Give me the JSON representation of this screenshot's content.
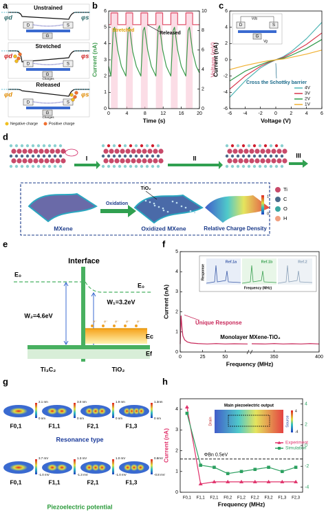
{
  "panel_labels": [
    "a",
    "b",
    "c",
    "d",
    "e",
    "f",
    "g",
    "h"
  ],
  "a": {
    "states": [
      "Unstrained",
      "Stretched",
      "Released"
    ],
    "phi_d": "φd",
    "phi_s": "φs",
    "device": [
      "D",
      "S",
      "G"
    ],
    "charges": "Charges",
    "legend": [
      "Negative charge",
      "Positive charge"
    ]
  },
  "chart_data": [
    {
      "type": "line",
      "xlabel": "Time (s)",
      "ylabel": "Current (nA)",
      "y2label": "Voltage (mV)",
      "xlim": [
        0,
        20
      ],
      "xticks": [
        0,
        4,
        8,
        12,
        16,
        20
      ],
      "ylim": [
        0,
        6
      ],
      "yticks": [
        0,
        1,
        2,
        3,
        4,
        5,
        6
      ],
      "y2lim": [
        0,
        10
      ],
      "y2ticks": [
        0,
        2,
        4,
        6,
        8,
        10
      ],
      "shaded": true,
      "annotations": [
        "Stretched",
        "Released"
      ],
      "series": [
        {
          "color": "#3a9a4a",
          "x": [
            0,
            0.5,
            1.0,
            1.3,
            2.0,
            2.8,
            3.8,
            4.3,
            4.6,
            5.3,
            6.1,
            7.1,
            7.6,
            7.9,
            8.6,
            9.4,
            10.4,
            10.9,
            11.2,
            11.9,
            12.7,
            13.7,
            14.2,
            14.5,
            15.2,
            16.0,
            17,
            17.5,
            17.8,
            18.5,
            19.3,
            20
          ],
          "values": [
            2.6,
            2.0,
            4.8,
            5.0,
            3.6,
            2.6,
            2.0,
            4.9,
            5.0,
            3.5,
            2.6,
            2.0,
            4.8,
            5.0,
            3.6,
            2.6,
            2.0,
            4.9,
            5.1,
            3.6,
            2.6,
            2.0,
            4.8,
            5.0,
            3.6,
            2.6,
            2.0,
            4.8,
            5.0,
            3.5,
            2.6,
            2.2
          ]
        },
        {
          "color": "#e0506a",
          "axis": "y2",
          "x": [
            0,
            0.5,
            0.5,
            2,
            2,
            3.8,
            3.8,
            5.3,
            5.3,
            7.1,
            7.1,
            8.6,
            8.6,
            10.4,
            10.4,
            11.9,
            11.9,
            13.7,
            13.7,
            15.2,
            15.2,
            17,
            17,
            18.5,
            18.5,
            20
          ],
          "values": [
            8.6,
            8.6,
            9.8,
            9.8,
            8.6,
            8.6,
            9.8,
            9.8,
            8.6,
            8.6,
            9.8,
            9.8,
            8.6,
            8.6,
            9.8,
            9.8,
            8.6,
            8.6,
            9.8,
            9.8,
            8.6,
            8.6,
            9.8,
            9.8,
            8.6,
            8.6
          ]
        }
      ]
    },
    {
      "type": "line",
      "xlabel": "Voltage (V)",
      "ylabel": "Current (nA)",
      "x": [
        -6,
        -4,
        -2,
        -1,
        0,
        1,
        2,
        4,
        6
      ],
      "xlim": [
        -6,
        6
      ],
      "xticks": [
        -6,
        -4,
        -2,
        0,
        2,
        4,
        6
      ],
      "ylim": [
        -6,
        6
      ],
      "yticks": [
        -6,
        -4,
        -2,
        0,
        2,
        4,
        6
      ],
      "legend": true,
      "legend_loc": "lower right",
      "annotation": "Cross the Schottky barrier",
      "inset_labels": [
        "D",
        "S",
        "G",
        "Vds",
        "Vg"
      ],
      "series": [
        {
          "name": "4V",
          "color": "#4fb5b5",
          "values": [
            -4.6,
            -2.6,
            -1.0,
            -0.45,
            0,
            0.4,
            1.0,
            2.6,
            4.6
          ]
        },
        {
          "name": "3V",
          "color": "#d8344a",
          "values": [
            -3.6,
            -2.0,
            -0.8,
            -0.35,
            0,
            0.3,
            0.8,
            1.9,
            3.3
          ]
        },
        {
          "name": "2V",
          "color": "#2f9a4a",
          "values": [
            -2.6,
            -1.4,
            -0.6,
            -0.25,
            0,
            0.2,
            0.55,
            1.4,
            2.5
          ]
        },
        {
          "name": "1V",
          "color": "#f0b030",
          "values": [
            -1.2,
            -0.7,
            -0.3,
            -0.12,
            0,
            0.1,
            0.3,
            0.7,
            1.2
          ]
        }
      ]
    },
    {
      "type": "line",
      "xlabel": "Frequency (MHz)",
      "ylabel": "Current (nA)",
      "x": [
        0,
        1,
        2,
        3,
        5,
        8,
        12,
        20,
        30,
        40,
        50,
        60,
        75,
        325,
        340,
        350,
        360,
        370,
        380,
        390,
        400
      ],
      "xlim": [
        0,
        400
      ],
      "xbreak": [
        75,
        325
      ],
      "xticks": [
        0,
        25,
        50,
        350,
        400
      ],
      "ylim": [
        0,
        5
      ],
      "yticks": [
        0,
        1,
        2,
        3,
        4,
        5
      ],
      "annotations": [
        "Unique Response",
        "Monolayer MXene-TiO₂"
      ],
      "inset_labels": [
        "Response",
        "Frequency (MHz)",
        "Ref.1a",
        "Ref.1b",
        "Ref.2"
      ],
      "series": [
        {
          "color": "#c8285a",
          "values": [
            0.4,
            1.8,
            1.2,
            0.8,
            0.6,
            0.5,
            0.45,
            0.42,
            0.4,
            0.42,
            0.4,
            0.41,
            0.4,
            0.41,
            0.4,
            0.42,
            0.4,
            0.41,
            0.4,
            0.42,
            0.4
          ]
        }
      ]
    },
    {
      "type": "line",
      "xlabel": "Frequency (MHz)",
      "ylabel": "Current (nA)",
      "categories": [
        "F0,1",
        "F1,1",
        "F2,1",
        "F0,2",
        "F1,2",
        "F2,2",
        "F3,2",
        "F1,3",
        "F2,3"
      ],
      "ylim": [
        0,
        4.5
      ],
      "yticks": [
        0,
        1,
        2,
        3,
        4
      ],
      "y2lim": [
        -4.5,
        4.5
      ],
      "y2ticks": [
        -4,
        -2,
        0,
        2,
        4
      ],
      "threshold": 1.6,
      "threshold_label": "ΦBn  0.5eV",
      "legend": true,
      "legend_loc": "center right",
      "inset_labels": [
        "Main piezoelectric output",
        "Drain",
        "Source",
        "4",
        "-4"
      ],
      "series": [
        {
          "name": "Experiment",
          "color": "#e0306a",
          "marker": "triangle",
          "values": [
            4.1,
            0.4,
            0.5,
            0.5,
            0.5,
            0.5,
            0.5,
            0.5,
            0.5
          ]
        },
        {
          "name": "Simulation",
          "color": "#2ca060",
          "marker": "square",
          "values": [
            3.8,
            1.3,
            1.2,
            0.9,
            1.0,
            1.1,
            1.2,
            1.0,
            1.2
          ]
        }
      ]
    }
  ],
  "d": {
    "steps": [
      "I",
      "II",
      "III"
    ],
    "tio2": "TiO₂",
    "oxidation": "Oxidation",
    "materials": [
      "MXene",
      "Oxidized MXene",
      "Relative Charge Density"
    ],
    "colorbar": [
      "1",
      "0"
    ],
    "elements": [
      "Ti",
      "C",
      "O",
      "H"
    ]
  },
  "e": {
    "interface": "Interface",
    "e0": "E₀",
    "w2": "W₂=4.6eV",
    "w1": "W₁=3.2eV",
    "electron": "e⁻",
    "ec": "Ec",
    "ef": "Ef",
    "materials": [
      "Ti₃C₂",
      "TiO₂"
    ]
  },
  "g": {
    "modes": [
      "F0,1",
      "F1,1",
      "F2,1",
      "F1,3"
    ],
    "resonance": "Resonance type",
    "potential": "Piezoelectric potential",
    "resonance_bars": [
      [
        "2.1 nm",
        "0 nm"
      ],
      [
        "3.0 nm",
        "0 nm"
      ],
      [
        "1.9 nm",
        "0 nm"
      ],
      [
        "1.3nm",
        "0 nm"
      ]
    ],
    "potential_bars": [
      [
        "3.7 mV",
        "-1.0 mV"
      ],
      [
        "1.3 mV",
        "-1.3 mV"
      ],
      [
        "1.0 mV",
        "-1.0 mV"
      ],
      [
        "0.8mV",
        "-0.8 mV"
      ]
    ]
  }
}
